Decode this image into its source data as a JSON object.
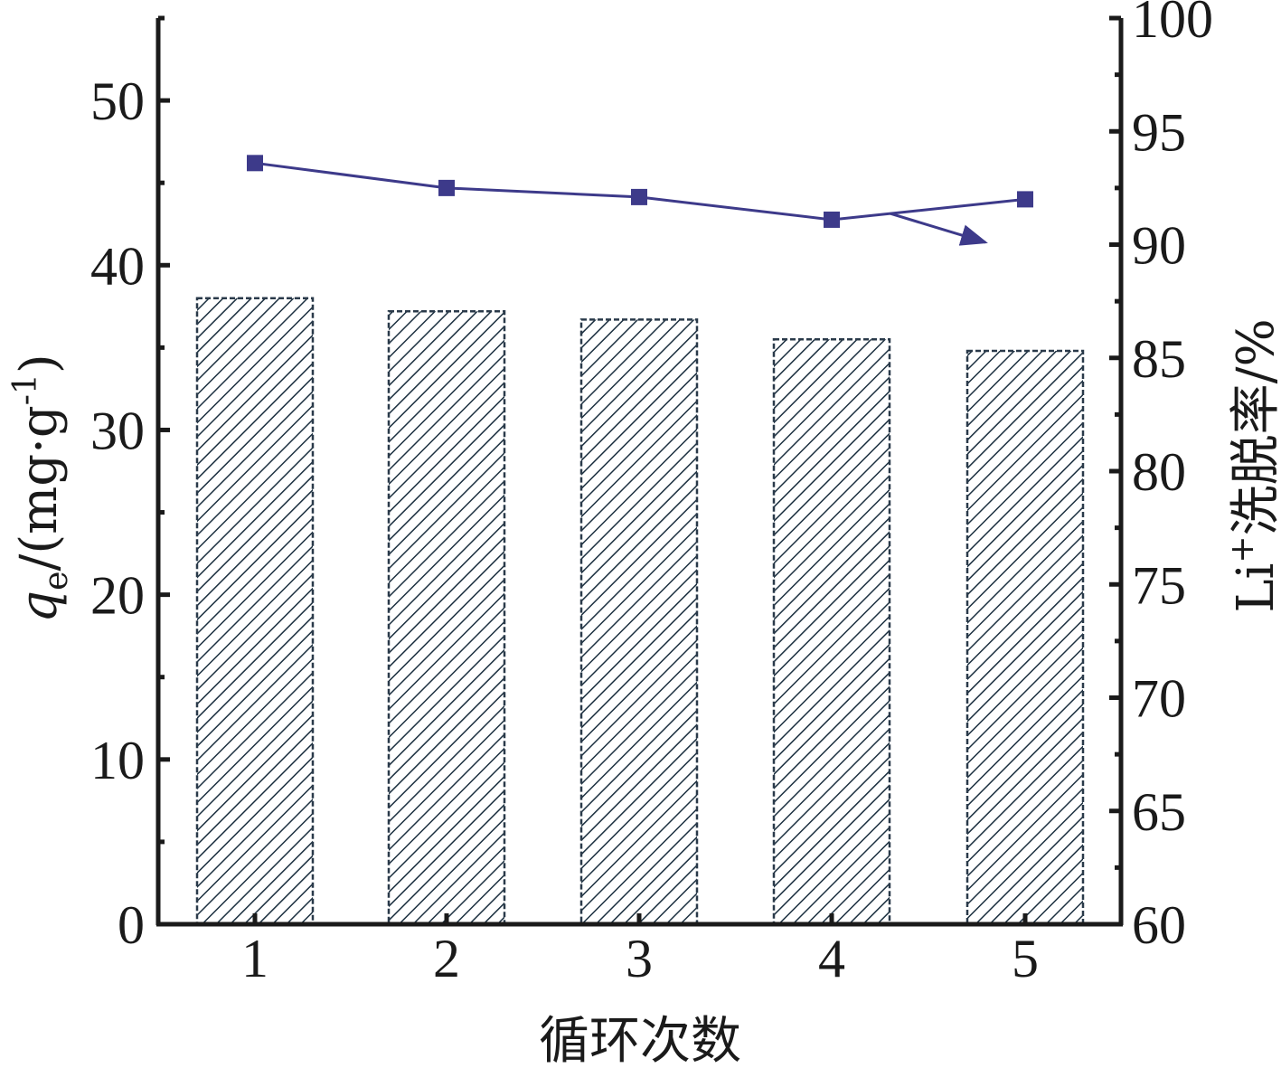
{
  "chart_data": {
    "type": "bar",
    "categories": [
      "1",
      "2",
      "3",
      "4",
      "5"
    ],
    "x_label": "循环次数",
    "left_axis": {
      "label_italic": "q",
      "label_sub": "e",
      "label_main": "/(mg·g",
      "label_sup": "-1",
      "label_tail": ")",
      "range": [
        0,
        55
      ],
      "ticks": [
        "0",
        "10",
        "20",
        "30",
        "40",
        "50"
      ]
    },
    "right_axis": {
      "label_main": "Li",
      "label_sup": "+",
      "label_tail": "洗脱率/%",
      "range": [
        60,
        100
      ],
      "ticks": [
        "60",
        "65",
        "70",
        "75",
        "80",
        "85",
        "90",
        "95",
        "100"
      ]
    },
    "series": [
      {
        "type": "bar",
        "axis": "left",
        "pattern": "diagonal-hatch",
        "values": [
          38.0,
          37.2,
          36.7,
          35.5,
          34.8
        ]
      },
      {
        "type": "line",
        "axis": "right",
        "marker": "square",
        "values": [
          93.6,
          92.5,
          92.1,
          91.1,
          92.0
        ]
      }
    ],
    "annotation": "arrow pointing from line to right axis",
    "colors": {
      "line": "#3d3a8a",
      "bar_hatch": "#1c3040",
      "bar_outline": "#2a3a4a"
    }
  }
}
